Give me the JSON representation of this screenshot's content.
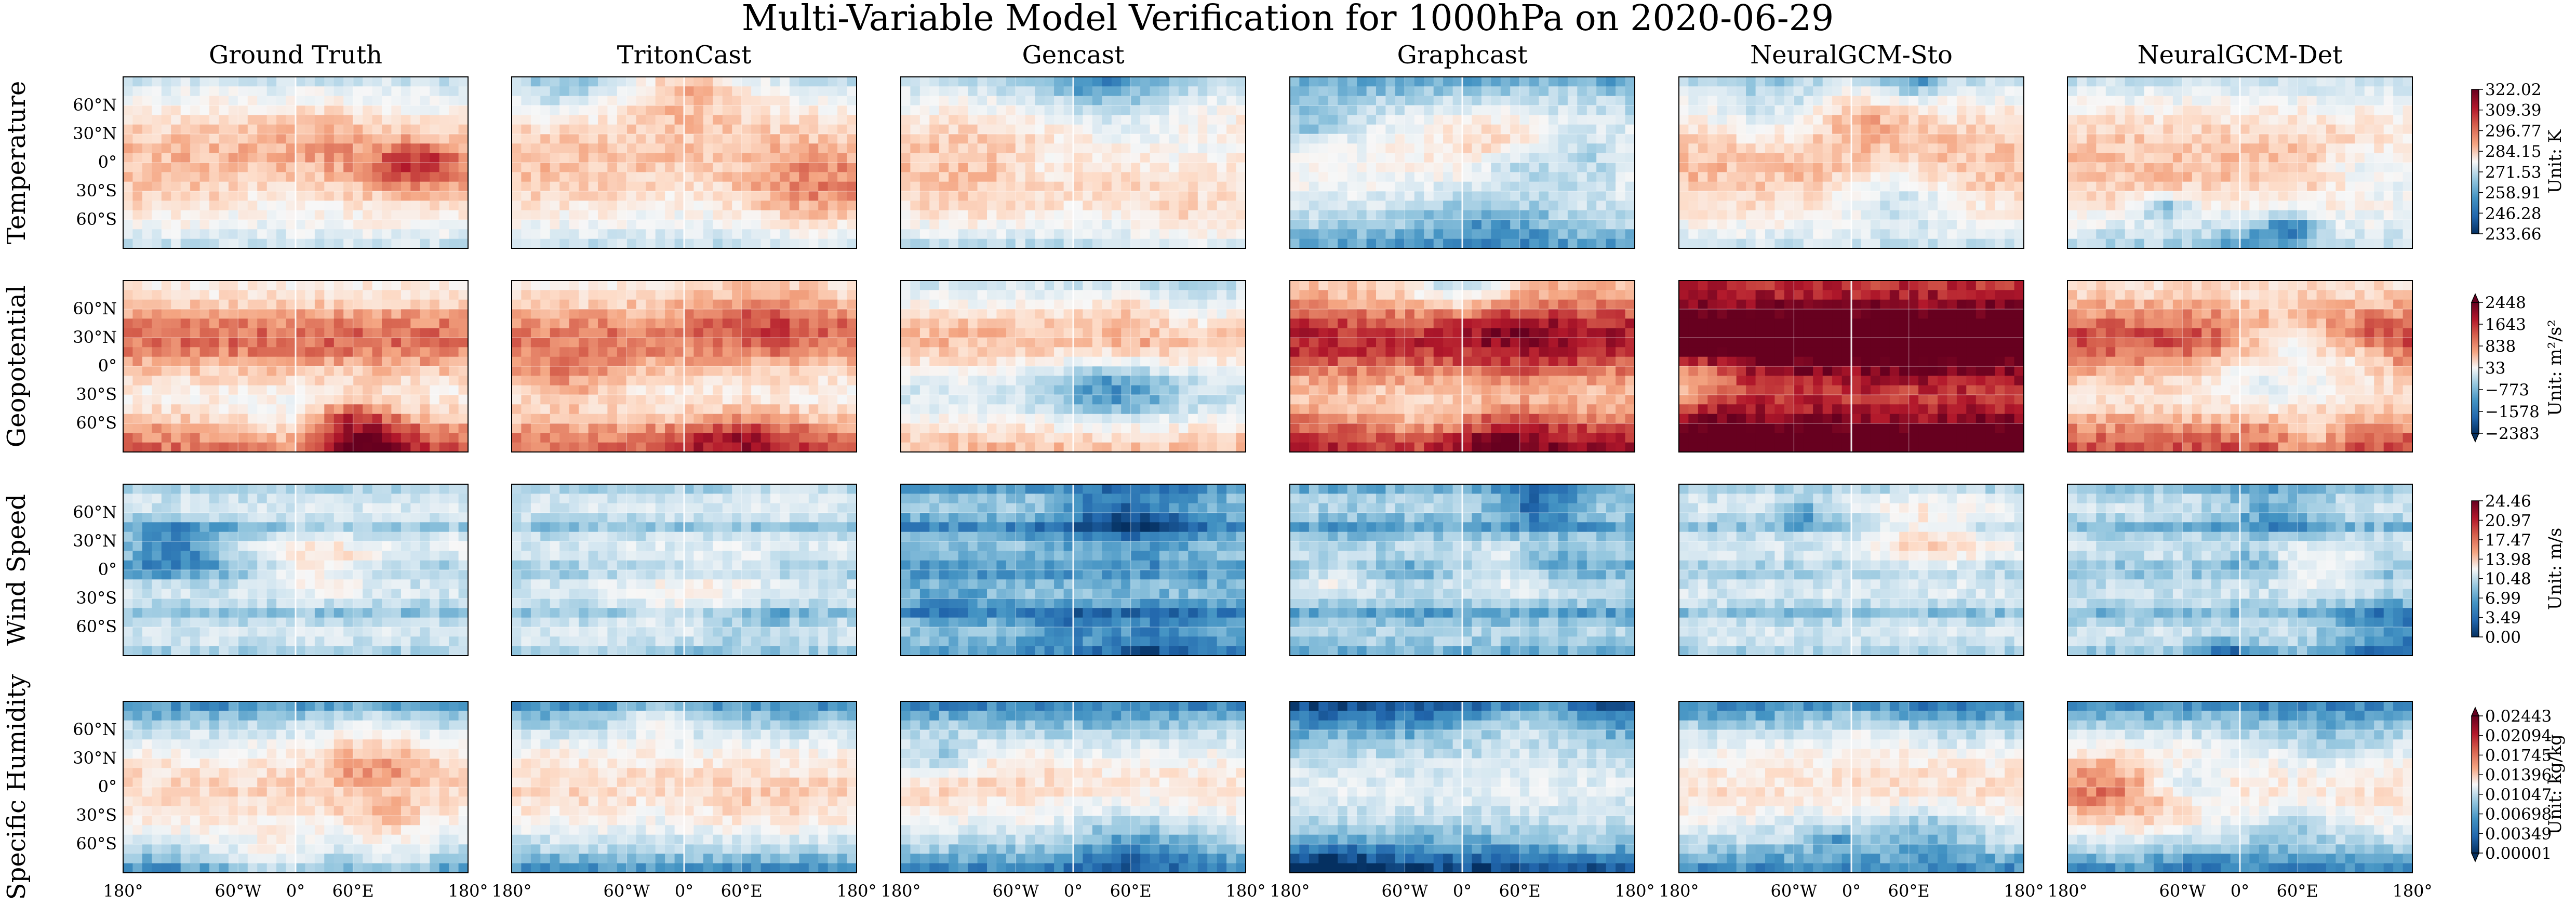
{
  "figure": {
    "title": "Multi-Variable Model Verification for 1000hPa on 2020-06-29"
  },
  "chart_data": {
    "type": "heatmap",
    "title": "Multi-Variable Model Verification for 1000hPa on 2020-06-29",
    "columns": [
      "Ground Truth",
      "TritonCast",
      "Gencast",
      "Graphcast",
      "NeuralGCM-Sto",
      "NeuralGCM-Det"
    ],
    "rows": [
      {
        "variable": "Temperature",
        "unit": "Unit: K",
        "colorbar_ticks": [
          "322.02",
          "309.39",
          "296.77",
          "284.15",
          "271.53",
          "258.91",
          "246.28",
          "233.66"
        ],
        "range": [
          233.66,
          322.02
        ],
        "extend": "neither",
        "panel_means": [
          0.58,
          0.57,
          0.56,
          0.42,
          0.58,
          0.57
        ]
      },
      {
        "variable": "Geopotential",
        "unit": "Unit: m²/s²",
        "colorbar_ticks": [
          "2448",
          "1643",
          "838",
          "33",
          "−773",
          "−1578",
          "−2383"
        ],
        "range": [
          -2383,
          2448
        ],
        "extend": "both",
        "panel_means": [
          0.66,
          0.66,
          0.54,
          0.78,
          0.99,
          0.7
        ]
      },
      {
        "variable": "Wind Speed",
        "unit": "Unit: m/s",
        "colorbar_ticks": [
          "24.46",
          "20.97",
          "17.47",
          "13.98",
          "10.48",
          "6.99",
          "3.49",
          "0.00"
        ],
        "range": [
          0.0,
          24.46
        ],
        "extend": "neither",
        "panel_means": [
          0.3,
          0.3,
          0.18,
          0.22,
          0.3,
          0.28
        ]
      },
      {
        "variable": "Specific Humidity",
        "unit": "Unit: kg/kg",
        "colorbar_ticks": [
          "0.02443",
          "0.02094",
          "0.01745",
          "0.01396",
          "0.01047",
          "0.00698",
          "0.00349",
          "0.00001"
        ],
        "range": [
          1e-05,
          0.02443
        ],
        "extend": "both",
        "panel_means": [
          0.45,
          0.45,
          0.42,
          0.3,
          0.43,
          0.44
        ]
      }
    ],
    "y_ticks": [
      "60°N",
      "30°N",
      "0°",
      "30°S",
      "60°S"
    ],
    "y_tick_values": [
      60,
      30,
      0,
      -30,
      -60
    ],
    "x_ticks": [
      "180°",
      "60°W",
      "0°",
      "60°E",
      "180°"
    ],
    "x_tick_values": [
      -180,
      -60,
      0,
      60,
      180
    ],
    "lon_range": [
      -180,
      180
    ],
    "lat_range": [
      -90,
      90
    ],
    "colormap": "RdBu_r"
  }
}
